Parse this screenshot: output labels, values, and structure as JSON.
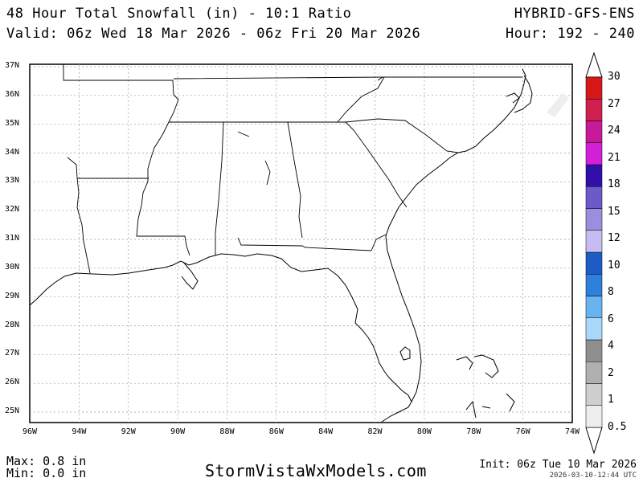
{
  "header": {
    "title": "48 Hour Total Snowfall (in) - 10:1 Ratio",
    "valid": "Valid: 06z Wed 18 Mar 2026 - 06z Fri 20 Mar 2026",
    "model": "HYBRID-GFS-ENS",
    "hour": "Hour: 192 - 240"
  },
  "map": {
    "lat_labels": [
      "37N",
      "36N",
      "35N",
      "34N",
      "33N",
      "32N",
      "31N",
      "30N",
      "29N",
      "28N",
      "27N",
      "26N",
      "25N"
    ],
    "lon_labels": [
      "96W",
      "94W",
      "92W",
      "90W",
      "88W",
      "86W",
      "84W",
      "82W",
      "80W",
      "78W",
      "76W",
      "74W"
    ],
    "snowfall_shading": "none"
  },
  "colorbar": {
    "levels": [
      "0.5",
      "1",
      "2",
      "4",
      "6",
      "8",
      "10",
      "12",
      "15",
      "18",
      "21",
      "24",
      "27",
      "30"
    ],
    "colors": [
      "#eeeeee",
      "#cfcfcf",
      "#b0b0b0",
      "#8f8f8f",
      "#a9d8f8",
      "#68b4ef",
      "#2f7fdc",
      "#1c5cc4",
      "#c5bdf0",
      "#9b8ee0",
      "#6a5bc8",
      "#3010a8",
      "#d020d8",
      "#c81a98",
      "#d0204f",
      "#d81818"
    ]
  },
  "footer": {
    "max": "Max: 0.8 in",
    "min": "Min: 0.0 in",
    "brand": "StormVistaWxModels.com",
    "init": "Init: 06z Tue 10 Mar 2026",
    "timestamp": "2026-03-10-12:44 UTC"
  }
}
